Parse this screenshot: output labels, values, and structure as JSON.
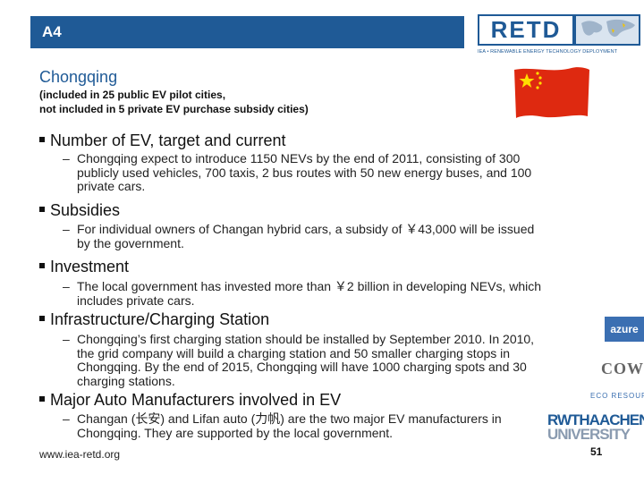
{
  "header": {
    "tab_label": "A4"
  },
  "logo": {
    "name": "RETD",
    "subtitle": "IEA • RENEWABLE ENERGY TECHNOLOGY DEPLOYMENT"
  },
  "title": {
    "city": "Chongqing",
    "note_line1": "(included in 25 public EV pilot cities,",
    "note_line2": "not included in 5 private EV purchase subsidy cities)"
  },
  "flag": {
    "colors": {
      "field": "#de2910",
      "stars": "#ffde00"
    }
  },
  "sections": [
    {
      "heading": "Number of EV, target and current",
      "lines": [
        "Chongqing expect to  introduce 1150 NEVs by the end of 2011, consisting of 300",
        "publicly used vehicles, 700 taxis, 2 bus routes with 50 new energy buses, and 100",
        "private cars."
      ]
    },
    {
      "heading": "Subsidies",
      "lines": [
        "For individual owners of Changan hybrid cars, a subsidy of ￥43,000 will be issued",
        "by the government."
      ]
    },
    {
      "heading": "Investment",
      "lines": [
        "The local government has invested more than ￥2 billion in developing NEVs, which",
        "includes private cars."
      ]
    },
    {
      "heading": "Infrastructure/Charging Station",
      "lines": [
        "Chongqing’s first charging station should be installed by September 2010.  In 2010,",
        "the grid company will build a charging station and 50 smaller charging stops in",
        "Chongqing. By the end of 2015, Chongqing will have 1000 charging spots and 30",
        "charging stations."
      ]
    },
    {
      "heading": "Major Auto Manufacturers involved in EV",
      "lines": [
        "Changan (长安) and Lifan auto (力帆) are the two major EV manufacturers in",
        "Chongqing. They are supported by the local government."
      ]
    }
  ],
  "side_logos": {
    "azure": "azure",
    "cowi": "COWI",
    "eco": "ECO RESOURCES",
    "rwth_line1": "RWTHAACHEN",
    "rwth_line2": "UNIVERSITY"
  },
  "footer": {
    "url": "www.iea-retd.org",
    "page": "51"
  },
  "colors": {
    "accent": "#1f5a96"
  }
}
